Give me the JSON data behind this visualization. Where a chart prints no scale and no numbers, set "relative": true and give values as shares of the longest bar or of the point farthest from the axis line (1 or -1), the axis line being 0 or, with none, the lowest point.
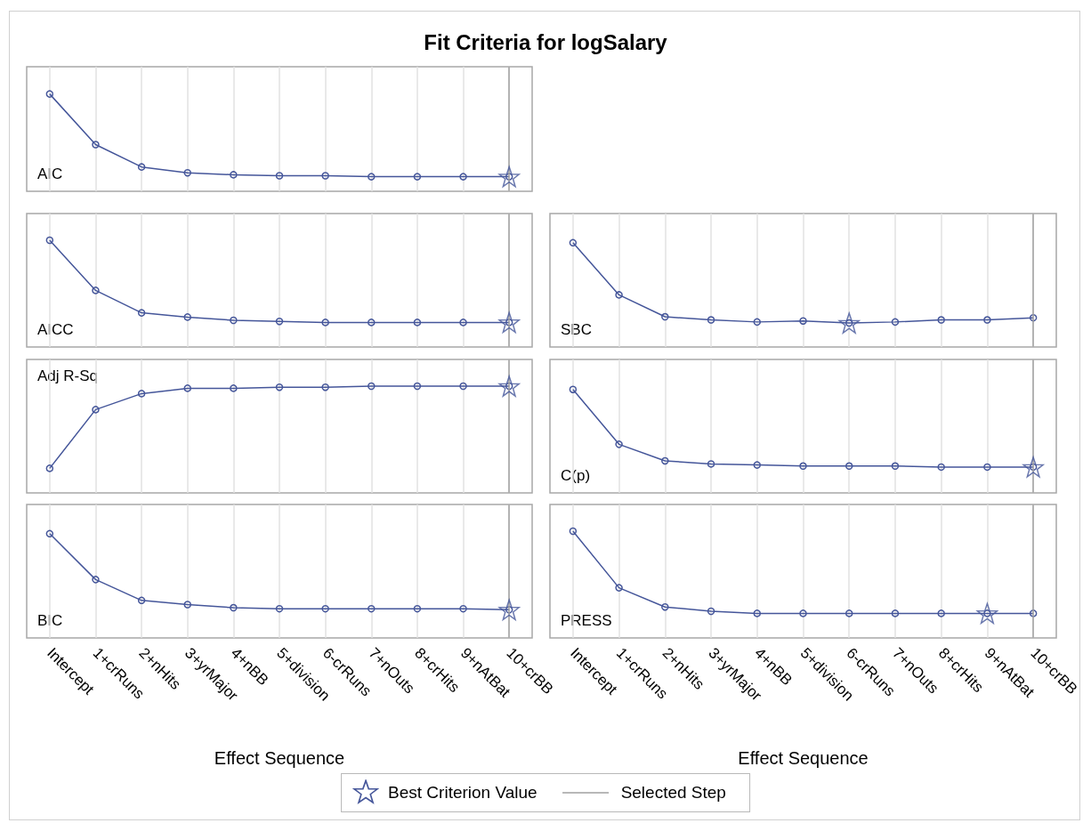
{
  "chart_data": [
    {
      "type": "line",
      "title": "Fit Criteria for logSalary",
      "annotations": [
        "AIC"
      ],
      "categories": [
        "Intercept",
        "1+crRuns",
        "2+nHits",
        "3+yrMajor",
        "4+nBB",
        "5+division",
        "6-crRuns",
        "7+nOuts",
        "8+crHits",
        "9+nAtBat",
        "10+crBB"
      ],
      "relative": true,
      "grid": "x",
      "marker": "circle",
      "tick_labels": false,
      "series": [
        {
          "color": "#45569a",
          "values": [
            1,
            0.48,
            0.25,
            0.19,
            0.17,
            0.16,
            0.16,
            0.15,
            0.15,
            0.15,
            0.15
          ]
        },
        {
          "type": "scatter",
          "marker": "star",
          "color": "#45569a",
          "x": [
            "10+crBB"
          ],
          "values": [
            0.15
          ]
        }
      ],
      "ref_lines": [
        {
          "axis": "x",
          "value": "10+crBB",
          "color": "#a0a0a0"
        }
      ]
    },
    {
      "type": "line",
      "annotations": [
        "AICC"
      ],
      "categories": [
        "Intercept",
        "1+crRuns",
        "2+nHits",
        "3+yrMajor",
        "4+nBB",
        "5+division",
        "6-crRuns",
        "7+nOuts",
        "8+crHits",
        "9+nAtBat",
        "10+crBB"
      ],
      "relative": true,
      "grid": "x",
      "marker": "circle",
      "tick_labels": false,
      "series": [
        {
          "color": "#45569a",
          "values": [
            1,
            0.53,
            0.32,
            0.28,
            0.25,
            0.24,
            0.23,
            0.23,
            0.23,
            0.23,
            0.23
          ]
        },
        {
          "type": "scatter",
          "marker": "star",
          "color": "#45569a",
          "x": [
            "10+crBB"
          ],
          "values": [
            0.23
          ]
        }
      ],
      "ref_lines": [
        {
          "axis": "x",
          "value": "10+crBB",
          "color": "#a0a0a0"
        }
      ]
    },
    {
      "type": "line",
      "annotations": [
        "SBC"
      ],
      "categories": [
        "Intercept",
        "1+crRuns",
        "2+nHits",
        "3+yrMajor",
        "4+nBB",
        "5+division",
        "6-crRuns",
        "7+nOuts",
        "8+crHits",
        "9+nAtBat",
        "10+crBB"
      ],
      "relative": true,
      "grid": "x",
      "marker": "circle",
      "tick_labels": false,
      "series": [
        {
          "color": "#45569a",
          "values": [
            1,
            0.5,
            0.29,
            0.26,
            0.24,
            0.25,
            0.23,
            0.24,
            0.26,
            0.26,
            0.28
          ]
        },
        {
          "type": "scatter",
          "marker": "star",
          "color": "#45569a",
          "x": [
            "6-crRuns"
          ],
          "values": [
            0.23
          ]
        }
      ],
      "ref_lines": [
        {
          "axis": "x",
          "value": "10+crBB",
          "color": "#a0a0a0"
        }
      ]
    },
    {
      "type": "line",
      "annotations": [
        "Adj R-Sq"
      ],
      "categories": [
        "Intercept",
        "1+crRuns",
        "2+nHits",
        "3+yrMajor",
        "4+nBB",
        "5+division",
        "6-crRuns",
        "7+nOuts",
        "8+crHits",
        "9+nAtBat",
        "10+crBB"
      ],
      "relative": true,
      "grid": "x",
      "marker": "circle",
      "tick_labels": false,
      "series": [
        {
          "color": "#45569a",
          "values": [
            0.23,
            0.78,
            0.93,
            0.98,
            0.98,
            0.99,
            0.99,
            1,
            1,
            1,
            1
          ]
        },
        {
          "type": "scatter",
          "marker": "star",
          "color": "#45569a",
          "x": [
            "10+crBB"
          ],
          "values": [
            1
          ]
        }
      ],
      "ref_lines": [
        {
          "axis": "x",
          "value": "10+crBB",
          "color": "#a0a0a0"
        }
      ]
    },
    {
      "type": "line",
      "annotations": [
        "C(p)"
      ],
      "categories": [
        "Intercept",
        "1+crRuns",
        "2+nHits",
        "3+yrMajor",
        "4+nBB",
        "5+division",
        "6-crRuns",
        "7+nOuts",
        "8+crHits",
        "9+nAtBat",
        "10+crBB"
      ],
      "relative": true,
      "grid": "x",
      "marker": "circle",
      "tick_labels": false,
      "series": [
        {
          "color": "#45569a",
          "values": [
            1,
            0.47,
            0.31,
            0.28,
            0.27,
            0.26,
            0.26,
            0.26,
            0.25,
            0.25,
            0.25
          ]
        },
        {
          "type": "scatter",
          "marker": "star",
          "color": "#45569a",
          "x": [
            "10+crBB"
          ],
          "values": [
            0.25
          ]
        }
      ],
      "ref_lines": [
        {
          "axis": "x",
          "value": "10+crBB",
          "color": "#a0a0a0"
        }
      ]
    },
    {
      "type": "line",
      "annotations": [
        "BIC"
      ],
      "xlabel": "Effect Sequence",
      "categories": [
        "Intercept",
        "1+crRuns",
        "2+nHits",
        "3+yrMajor",
        "4+nBB",
        "5+division",
        "6-crRuns",
        "7+nOuts",
        "8+crHits",
        "9+nAtBat",
        "10+crBB"
      ],
      "relative": true,
      "grid": "x",
      "marker": "circle",
      "tick_labels": "x",
      "series": [
        {
          "color": "#45569a",
          "values": [
            1,
            0.56,
            0.36,
            0.32,
            0.29,
            0.28,
            0.28,
            0.28,
            0.28,
            0.28,
            0.27
          ]
        },
        {
          "type": "scatter",
          "marker": "star",
          "color": "#45569a",
          "x": [
            "10+crBB"
          ],
          "values": [
            0.27
          ]
        }
      ],
      "ref_lines": [
        {
          "axis": "x",
          "value": "10+crBB",
          "color": "#a0a0a0"
        }
      ]
    },
    {
      "type": "line",
      "annotations": [
        "PRESS"
      ],
      "xlabel": "Effect Sequence",
      "legend": "bottom",
      "categories": [
        "Intercept",
        "1+crRuns",
        "2+nHits",
        "3+yrMajor",
        "4+nBB",
        "5+division",
        "6-crRuns",
        "7+nOuts",
        "8+crHits",
        "9+nAtBat",
        "10+crBB"
      ],
      "relative": true,
      "grid": "x",
      "marker": "circle",
      "tick_labels": "x",
      "series": [
        {
          "color": "#45569a",
          "values": [
            1,
            0.47,
            0.29,
            0.25,
            0.23,
            0.23,
            0.23,
            0.23,
            0.23,
            0.23,
            0.23
          ]
        },
        {
          "type": "scatter",
          "marker": "star",
          "name": "Best Criterion Value",
          "color": "#45569a",
          "x": [
            "9+nAtBat"
          ],
          "values": [
            0.23
          ]
        }
      ],
      "ref_lines": [
        {
          "axis": "x",
          "value": "10+crBB",
          "label": "Selected Step",
          "color": "#a0a0a0"
        }
      ]
    }
  ]
}
